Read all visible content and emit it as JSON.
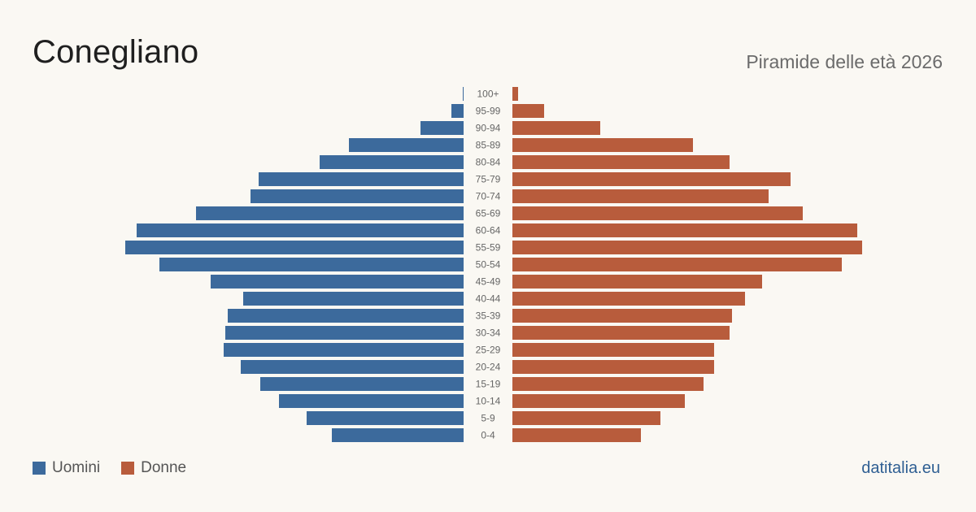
{
  "header": {
    "title": "Conegliano",
    "subtitle": "Piramide delle età 2026"
  },
  "legend": {
    "items": [
      {
        "label": "Uomini",
        "color": "#3c6a9c"
      },
      {
        "label": "Donne",
        "color": "#b85c3c"
      }
    ]
  },
  "footer": {
    "brand": "datitalia.eu"
  },
  "chart_data": {
    "type": "bar",
    "orientation": "horizontal-pyramid",
    "categories": [
      "100+",
      "95-99",
      "90-94",
      "85-89",
      "80-84",
      "75-79",
      "70-74",
      "65-69",
      "60-64",
      "55-59",
      "50-54",
      "45-49",
      "40-44",
      "35-39",
      "30-34",
      "25-29",
      "20-24",
      "15-19",
      "10-14",
      "5-9",
      "0-4"
    ],
    "series": [
      {
        "name": "Uomini",
        "color": "#3c6a9c",
        "values": [
          1,
          15,
          53,
          141,
          177,
          252,
          262,
          329,
          402,
          416,
          374,
          311,
          271,
          290,
          293,
          295,
          274,
          250,
          227,
          193,
          162
        ]
      },
      {
        "name": "Donne",
        "color": "#b85c3c",
        "values": [
          7,
          39,
          108,
          222,
          267,
          342,
          315,
          357,
          424,
          430,
          405,
          307,
          286,
          270,
          267,
          248,
          248,
          235,
          212,
          182,
          158
        ]
      }
    ],
    "xlim": [
      0,
      432
    ],
    "grid": false,
    "legend_position": "bottom-left"
  }
}
